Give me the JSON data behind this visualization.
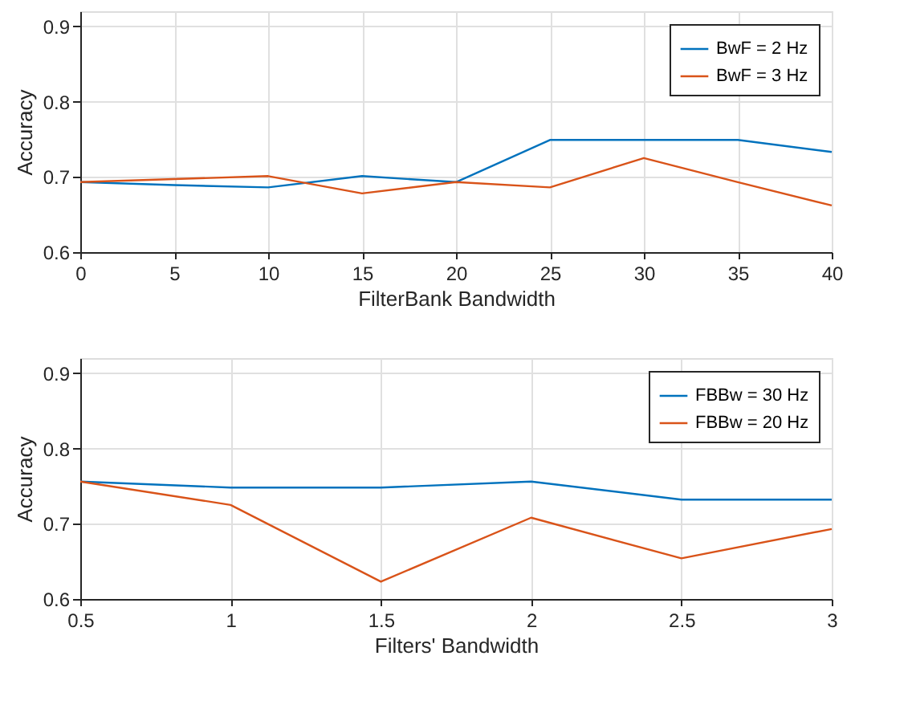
{
  "chart_data": [
    {
      "type": "line",
      "xlabel": "FilterBank Bandwidth",
      "ylabel": "Accuracy",
      "x": [
        0,
        5,
        10,
        15,
        20,
        25,
        30,
        35,
        40
      ],
      "xlim": [
        0,
        40
      ],
      "xticks": [
        0,
        5,
        10,
        15,
        20,
        25,
        30,
        35,
        40
      ],
      "ylim": [
        0.6,
        0.92
      ],
      "yticks": [
        0.6,
        0.7,
        0.8,
        0.9
      ],
      "grid": true,
      "legend": "top right",
      "marker": "none",
      "line_style": "solid",
      "series": [
        {
          "name": "BwF = 2 Hz",
          "color": "#0072bd",
          "values": [
            0.693,
            0.689,
            0.686,
            0.701,
            0.693,
            0.749,
            0.749,
            0.749,
            0.733
          ]
        },
        {
          "name": "BwF = 3 Hz",
          "color": "#d95319",
          "values": [
            0.693,
            0.697,
            0.701,
            0.678,
            0.693,
            0.686,
            0.725,
            0.693,
            0.662
          ]
        }
      ]
    },
    {
      "type": "line",
      "xlabel": "Filters' Bandwidth",
      "ylabel": "Accuracy",
      "x": [
        0.5,
        1,
        1.5,
        2,
        2.5,
        3
      ],
      "xlim": [
        0.5,
        3
      ],
      "xticks": [
        0.5,
        1,
        1.5,
        2,
        2.5,
        3
      ],
      "ylim": [
        0.6,
        0.92
      ],
      "yticks": [
        0.6,
        0.7,
        0.8,
        0.9
      ],
      "grid": true,
      "legend": "top right",
      "marker": "none",
      "line_style": "solid",
      "series": [
        {
          "name": "FBBw = 30 Hz",
          "color": "#0072bd",
          "values": [
            0.756,
            0.748,
            0.748,
            0.756,
            0.732,
            0.732
          ]
        },
        {
          "name": "FBBw = 20 Hz",
          "color": "#d95319",
          "values": [
            0.756,
            0.725,
            0.623,
            0.708,
            0.654,
            0.693
          ]
        }
      ]
    }
  ]
}
